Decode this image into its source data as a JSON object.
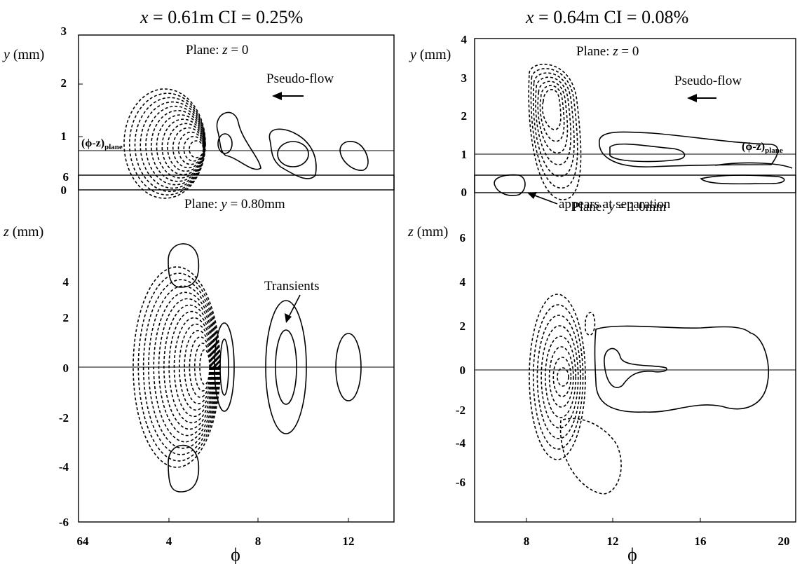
{
  "chart_data": [
    {
      "type": "contour",
      "title": "x = 0.61m CI = 0.25%",
      "title_parts": {
        "x_var": "x",
        "x_val": " = 0.61m CI = 0.25%"
      },
      "annotations": {
        "plane": "Plane: ",
        "plane_var": "z",
        "plane_val": " = 0",
        "arrow_label": "Pseudo-flow",
        "ref_label": "(ϕ-z)",
        "ref_sub": "plane"
      },
      "ylabel": {
        "var": "y",
        "unit": " (mm)"
      },
      "ylim": [
        0,
        3
      ],
      "yticks": [
        "0",
        "1",
        "2",
        "3"
      ],
      "ref_line_y": 0.75,
      "contours": {
        "negative": [
          {
            "center_x": 4.8,
            "center_y": 0.75,
            "levels": 13
          }
        ],
        "positive": [
          {
            "center_x": 6.7,
            "center_y": 0.7
          },
          {
            "center_x": 9.2,
            "center_y": 0.65
          },
          {
            "center_x": 12.0,
            "center_y": 0.65
          }
        ]
      }
    },
    {
      "type": "contour",
      "title": "x = 0.64m CI = 0.08%",
      "title_parts": {
        "x_var": "x",
        "x_val": " = 0.64m CI = 0.08%"
      },
      "annotations": {
        "plane": "Plane: ",
        "plane_var": "z",
        "plane_val": " = 0",
        "arrow_label": "Pseudo-flow",
        "ref_label": "(ϕ-z)",
        "ref_sub": "plane",
        "callout": "appears at separation"
      },
      "ylabel": {
        "var": "y",
        "unit": " (mm)"
      },
      "ylim": [
        0,
        4
      ],
      "yticks": [
        "0",
        "1",
        "2",
        "3",
        "4"
      ],
      "ref_line_y": 1.0
    },
    {
      "type": "contour",
      "annotations": {
        "plane": "Plane: ",
        "plane_var": "y",
        "plane_val": " = 0.80mm",
        "transients": "Transients"
      },
      "xlabel": "ϕ",
      "ylabel": {
        "var": "z",
        "unit": " (mm)"
      },
      "xlim": [
        2,
        14
      ],
      "ylim": [
        -6,
        6
      ],
      "xticks": [
        "64",
        "4",
        "8",
        "12"
      ],
      "yticks": [
        "-6",
        "-4",
        "-2",
        "0",
        "2",
        "4",
        "6"
      ],
      "ref_line_y": 0
    },
    {
      "type": "contour",
      "annotations": {
        "plane": "Plane: ",
        "plane_var": "y",
        "plane_val": " = 1.0mm"
      },
      "xlabel": "ϕ",
      "ylabel": {
        "var": "z",
        "unit": " (mm)"
      },
      "xlim": [
        5,
        20
      ],
      "ylim": [
        -7,
        7
      ],
      "xticks": [
        "8",
        "12",
        "16",
        "20"
      ],
      "yticks": [
        "-6",
        "-4",
        "-2",
        "0",
        "2",
        "4",
        "6"
      ],
      "ref_line_y": 0
    }
  ]
}
